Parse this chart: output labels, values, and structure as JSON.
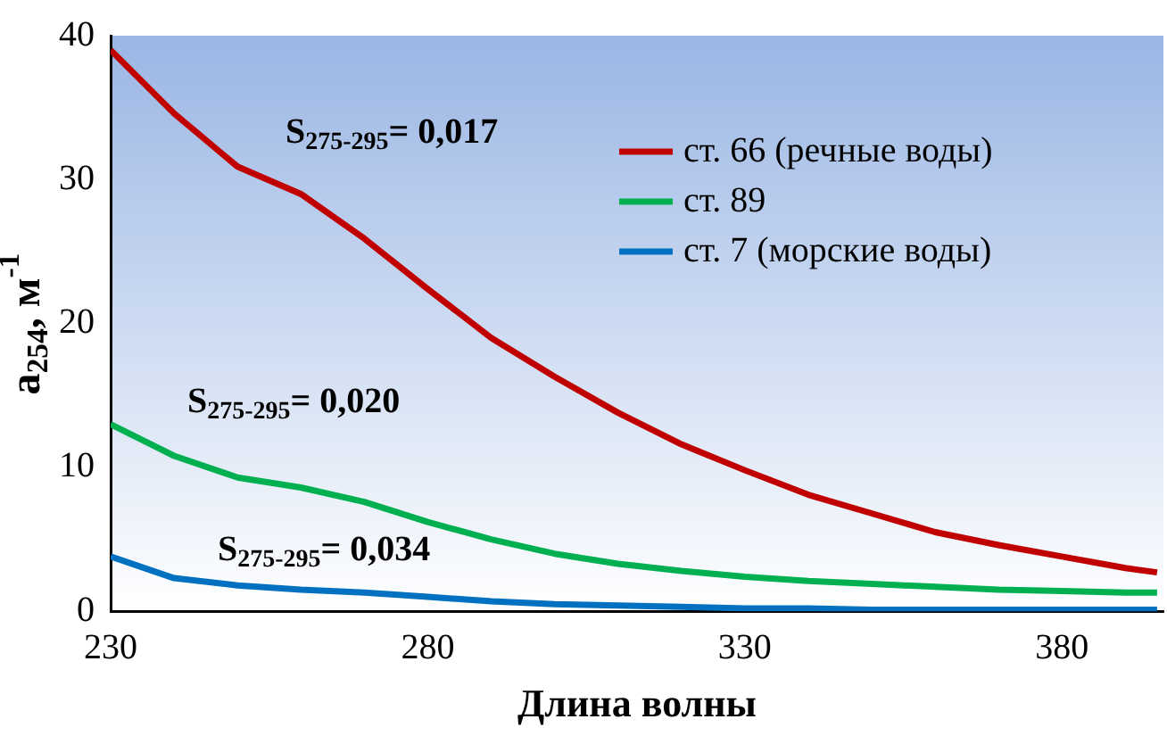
{
  "chart_data": {
    "type": "line",
    "xlabel": "Длина волны",
    "ylabel": "a$_{254}$, м$^{-1}$",
    "x": [
      230,
      240,
      250,
      260,
      270,
      280,
      290,
      300,
      310,
      320,
      330,
      340,
      350,
      360,
      370,
      380,
      390,
      395
    ],
    "series": [
      {
        "name": "ст. 66 (речные воды)",
        "color": "#c00000",
        "values": [
          39,
          34.6,
          30.9,
          29,
          25.9,
          22.4,
          19,
          16.3,
          13.8,
          11.6,
          9.8,
          8.1,
          6.8,
          5.5,
          4.6,
          3.8,
          3,
          2.7
        ]
      },
      {
        "name": "ст. 89",
        "color": "#00b050",
        "values": [
          13,
          10.8,
          9.3,
          8.6,
          7.6,
          6.2,
          5,
          4,
          3.3,
          2.8,
          2.4,
          2.1,
          1.9,
          1.7,
          1.5,
          1.4,
          1.3,
          1.3
        ]
      },
      {
        "name": "ст. 7 (морские воды)",
        "color": "#0070c0",
        "values": [
          3.8,
          2.3,
          1.8,
          1.5,
          1.3,
          1,
          0.7,
          0.5,
          0.4,
          0.3,
          0.2,
          0.2,
          0.1,
          0.1,
          0.1,
          0.1,
          0.1,
          0.1
        ]
      }
    ],
    "xlim": [
      230,
      396
    ],
    "xticks": [
      230,
      280,
      330,
      380
    ],
    "ylim": [
      0,
      40
    ],
    "yticks": [
      0,
      10,
      20,
      30,
      40
    ],
    "grid": false,
    "legend": "top right",
    "marker": "none",
    "line_style": "solid",
    "annotations": [
      "S$_{275-295}$= 0,017",
      "S$_{275-295}$= 0,020",
      "S$_{275-295}$= 0,034"
    ]
  }
}
